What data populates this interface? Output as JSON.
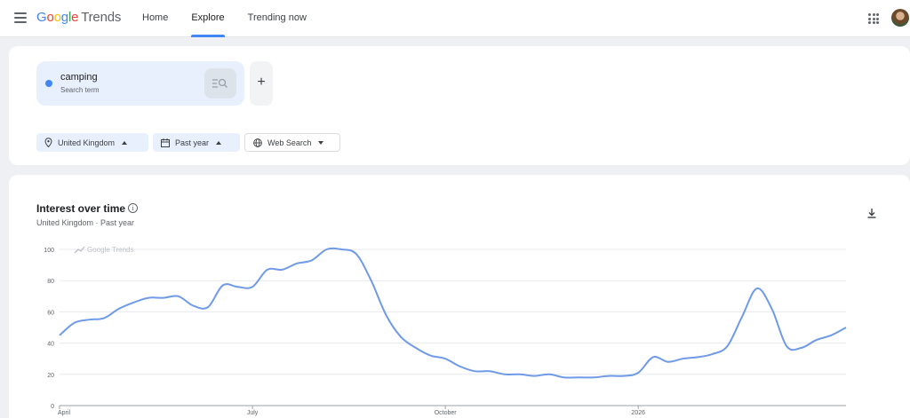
{
  "header": {
    "logo_google": "Google",
    "logo_product": "Trends",
    "nav": [
      {
        "label": "Home",
        "active": false
      },
      {
        "label": "Explore",
        "active": true
      },
      {
        "label": "Trending now",
        "active": false
      }
    ],
    "icons": {
      "menu": "menu-icon",
      "apps": "apps-grid-icon",
      "avatar": "account-avatar"
    }
  },
  "search": {
    "term": "camping",
    "term_type": "Search term",
    "term_color": "#4285f4",
    "add_label": "+"
  },
  "filters": {
    "region": "United Kingdom",
    "time": "Past year",
    "property": "Web Search"
  },
  "chart_panel": {
    "title": "Interest over time",
    "subtitle": "United Kingdom · Past year",
    "watermark": "Google Trends"
  },
  "chart_data": {
    "type": "line",
    "title": "Interest over time",
    "xlabel": "",
    "ylabel": "",
    "ylim": [
      0,
      100
    ],
    "yticks": [
      0,
      20,
      40,
      60,
      80,
      100
    ],
    "grid": true,
    "xtick_labels": [
      "April",
      "July",
      "October",
      "2026"
    ],
    "xtick_index": [
      0,
      13,
      26,
      39
    ],
    "series": [
      {
        "color": "#6f9ae8",
        "values": [
          45,
          53,
          55,
          56,
          62,
          66,
          69,
          69,
          70,
          64,
          63,
          77,
          76,
          76,
          87,
          87,
          91,
          93,
          100,
          100,
          97,
          80,
          58,
          44,
          37,
          32,
          30,
          25,
          22,
          22,
          20,
          20,
          19,
          20,
          18,
          18,
          18,
          19,
          19,
          21,
          31,
          28,
          30,
          31,
          33,
          38,
          57,
          75,
          62,
          38,
          37,
          42,
          45,
          50
        ]
      }
    ]
  }
}
